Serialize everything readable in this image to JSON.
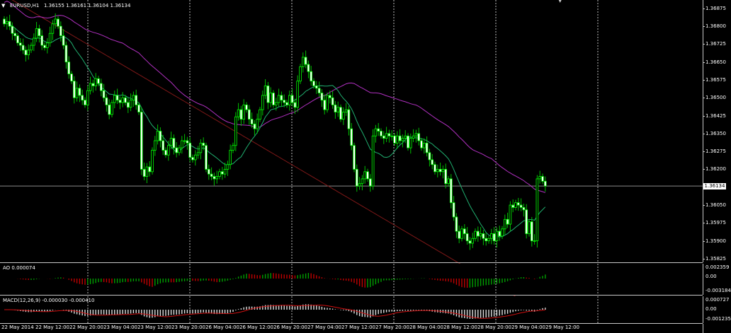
{
  "chart_header": {
    "symbol": "EURUSD,H1",
    "ohlc": "1.36155 1.36161 1.36104 1.36134",
    "arrow_icon": "triangle-down-icon"
  },
  "ao": {
    "label": "AO 0.000074",
    "axis": [
      "0.002359",
      "0.00",
      "-0.003184"
    ]
  },
  "macd": {
    "label": "MACD(12,26,9) -0.000030 -0.000410",
    "axis": [
      "0.000727",
      "0.00",
      "-0.001235"
    ]
  },
  "price_axis": {
    "ticks": [
      "1.36875",
      "1.36800",
      "1.36725",
      "1.36650",
      "1.36575",
      "1.36500",
      "1.36425",
      "1.36350",
      "1.36275",
      "1.36200",
      "1.36050",
      "1.35975",
      "1.35900",
      "1.35825"
    ],
    "current": "1.36134"
  },
  "time_axis": [
    "22 May 2014",
    "22 May 12:00",
    "22 May 20:00",
    "23 May 04:00",
    "23 May 12:00",
    "23 May 20:00",
    "26 May 04:00",
    "26 May 12:00",
    "26 May 20:00",
    "27 May 04:00",
    "27 May 12:00",
    "27 May 20:00",
    "28 May 04:00",
    "28 May 12:00",
    "28 May 20:00",
    "29 May 04:00",
    "29 May 12:00"
  ],
  "colors": {
    "background": "#000000",
    "bull_candle": "#00ff00",
    "bear_candle": "#ffffff",
    "wick": "#00c000",
    "ma_fast": "#20b070",
    "ma_mid": "#b030c0",
    "ma_slow": "#801818",
    "ao_up": "#00a000",
    "ao_down": "#c00000",
    "macd_hist": "#e0e0e0",
    "macd_signal": "#d01010"
  },
  "chart_data": [
    {
      "type": "candlestick",
      "title": "EURUSD,H1",
      "ylim": [
        1.3581,
        1.3691
      ],
      "closes": [
        1.3681,
        1.3682,
        1.368,
        1.3677,
        1.3676,
        1.3673,
        1.3672,
        1.367,
        1.3668,
        1.367,
        1.3672,
        1.3675,
        1.3679,
        1.3676,
        1.3672,
        1.3671,
        1.3673,
        1.3677,
        1.3681,
        1.3683,
        1.368,
        1.3676,
        1.3672,
        1.3665,
        1.366,
        1.3657,
        1.365,
        1.3654,
        1.3651,
        1.3649,
        1.3647,
        1.3653,
        1.3656,
        1.3655,
        1.3658,
        1.3656,
        1.3653,
        1.365,
        1.3647,
        1.3643,
        1.3648,
        1.3651,
        1.3649,
        1.3648,
        1.365,
        1.3648,
        1.3646,
        1.3649,
        1.3651,
        1.3647,
        1.3644,
        1.362,
        1.3617,
        1.3621,
        1.3619,
        1.3628,
        1.3632,
        1.3636,
        1.3632,
        1.3628,
        1.3626,
        1.363,
        1.3633,
        1.3629,
        1.3627,
        1.3629,
        1.3632,
        1.3632,
        1.3631,
        1.3625,
        1.3624,
        1.3626,
        1.3627,
        1.3631,
        1.363,
        1.362,
        1.3618,
        1.3617,
        1.3616,
        1.3617,
        1.3619,
        1.3618,
        1.362,
        1.3622,
        1.3628,
        1.363,
        1.3642,
        1.3645,
        1.3641,
        1.3647,
        1.3645,
        1.3641,
        1.3639,
        1.3637,
        1.3641,
        1.3645,
        1.3651,
        1.3655,
        1.3648,
        1.3652,
        1.3647,
        1.3648,
        1.3651,
        1.3649,
        1.3648,
        1.3647,
        1.3651,
        1.3648,
        1.3646,
        1.3657,
        1.3663,
        1.3667,
        1.3664,
        1.3661,
        1.3657,
        1.3655,
        1.3654,
        1.3652,
        1.3649,
        1.3645,
        1.3651,
        1.365,
        1.3647,
        1.3644,
        1.3646,
        1.3641,
        1.3644,
        1.3645,
        1.3637,
        1.363,
        1.362,
        1.3613,
        1.3614,
        1.3616,
        1.3619,
        1.3616,
        1.3613,
        1.3634,
        1.3637,
        1.3636,
        1.3634,
        1.3633,
        1.3635,
        1.3634,
        1.3634,
        1.3631,
        1.3634,
        1.3632,
        1.3633,
        1.3634,
        1.3629,
        1.3633,
        1.3634,
        1.3635,
        1.3632,
        1.3629,
        1.3631,
        1.3627,
        1.3624,
        1.3622,
        1.3619,
        1.362,
        1.3619,
        1.362,
        1.3614,
        1.3616,
        1.3606,
        1.36,
        1.3594,
        1.3591,
        1.3595,
        1.3593,
        1.359,
        1.3589,
        1.3591,
        1.3594,
        1.3592,
        1.3593,
        1.3591,
        1.359,
        1.3591,
        1.3593,
        1.359,
        1.3594,
        1.3592,
        1.3595,
        1.3599,
        1.3597,
        1.3605,
        1.3604,
        1.3606,
        1.3605,
        1.3604,
        1.3603,
        1.3593,
        1.3598,
        1.359,
        1.359,
        1.3616,
        1.3617,
        1.3615,
        1.3613
      ],
      "series": [
        {
          "values_note_key": "ma_fast"
        },
        {
          "values_note_key": "ma_mid"
        },
        {
          "values_note_key": "ma_slow"
        }
      ]
    }
  ]
}
